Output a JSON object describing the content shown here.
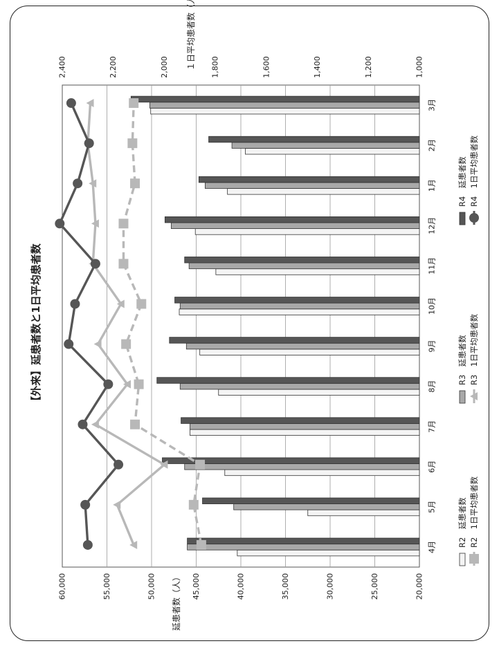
{
  "chart_data": {
    "type": "bar",
    "title": "【外来】延患者数と1日平均患者数",
    "categories": [
      "4月",
      "5月",
      "6月",
      "7月",
      "8月",
      "9月",
      "10月",
      "11月",
      "12月",
      "1月",
      "2月",
      "3月"
    ],
    "ylabel_left": "延患者数（人）",
    "ylabel_right": "１日平均患者数（人）",
    "ylim_left": [
      20000,
      60000
    ],
    "yticks_left": [
      "20,000",
      "25,000",
      "30,000",
      "35,000",
      "40,000",
      "45,000",
      "50,000",
      "55,000",
      "60,000"
    ],
    "ylim_right": [
      1000,
      2400
    ],
    "yticks_right": [
      "1,000",
      "1,200",
      "1,400",
      "1,600",
      "1,800",
      "2,000",
      "2,200",
      "2,400"
    ],
    "grid": true,
    "legend_position": "bottom",
    "bar_series": [
      {
        "name": "R2　延患者数",
        "color": "#f4f4f4",
        "values": [
          40400,
          32500,
          41800,
          45700,
          42500,
          44600,
          46900,
          42800,
          45100,
          41500,
          39500,
          50100
        ]
      },
      {
        "name": "R3　延患者数",
        "color": "#a9a9a9",
        "values": [
          46000,
          40800,
          46300,
          45700,
          46800,
          46100,
          46800,
          45800,
          47800,
          44000,
          41000,
          50200
        ]
      },
      {
        "name": "R4　延患者数",
        "color": "#565656",
        "values": [
          46000,
          44300,
          48800,
          46700,
          49400,
          48000,
          47400,
          46300,
          48500,
          44700,
          43600,
          52300
        ]
      }
    ],
    "line_series": [
      {
        "name": "R2　1日平均患者数",
        "color": "#b8b8b8",
        "marker": "square",
        "dashed": true,
        "values": [
          1855,
          1885,
          1860,
          2115,
          2100,
          2150,
          2090,
          2160,
          2160,
          2115,
          2125,
          2120
        ]
      },
      {
        "name": "R3　1日平均患者数",
        "color": "#b8b8b8",
        "marker": "triangle",
        "dashed": false,
        "values": [
          2120,
          2185,
          2000,
          2270,
          2145,
          2260,
          2170,
          2280,
          2270,
          2280,
          2300,
          2290
        ]
      },
      {
        "name": "R4　1日平均患者数",
        "color": "#565656",
        "marker": "circle",
        "dashed": false,
        "values": [
          2300,
          2310,
          2180,
          2320,
          2220,
          2375,
          2350,
          2270,
          2410,
          2340,
          2295,
          2365
        ]
      }
    ]
  }
}
